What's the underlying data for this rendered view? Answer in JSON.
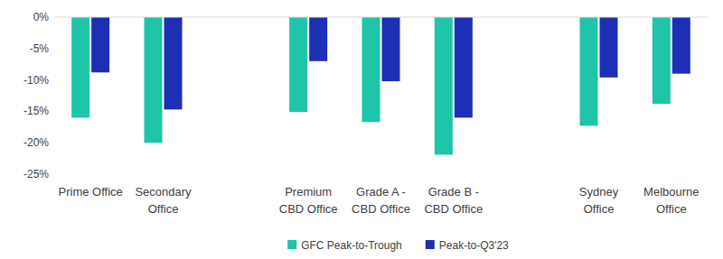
{
  "chart_data": {
    "type": "bar",
    "categories": [
      "Prime Office",
      "Secondary Office",
      null,
      "Premium CBD Office",
      "Grade A - CBD Office",
      "Grade B - CBD Office",
      null,
      "Sydney Office",
      "Melbourne Office"
    ],
    "series": [
      {
        "name": "GFC Peak-to-Trough",
        "color": "#20c4a8",
        "values": [
          -16,
          -20,
          null,
          -15.1,
          -16.7,
          -21.9,
          null,
          -17.3,
          -13.8
        ]
      },
      {
        "name": "Peak-to-Q3'23",
        "color": "#1c2fb5",
        "values": [
          -8.8,
          -14.7,
          null,
          -7,
          -10.2,
          -16,
          null,
          -9.6,
          -9
        ]
      }
    ],
    "ylim": [
      -25,
      0
    ],
    "yticks": [
      {
        "value": 0,
        "label": "0%"
      },
      {
        "value": -5,
        "label": "-5%"
      },
      {
        "value": -10,
        "label": "-10%"
      },
      {
        "value": -15,
        "label": "-15%"
      },
      {
        "value": -20,
        "label": "-20%"
      },
      {
        "value": -25,
        "label": "-25%"
      }
    ],
    "grid": false,
    "legend": "bottom"
  }
}
